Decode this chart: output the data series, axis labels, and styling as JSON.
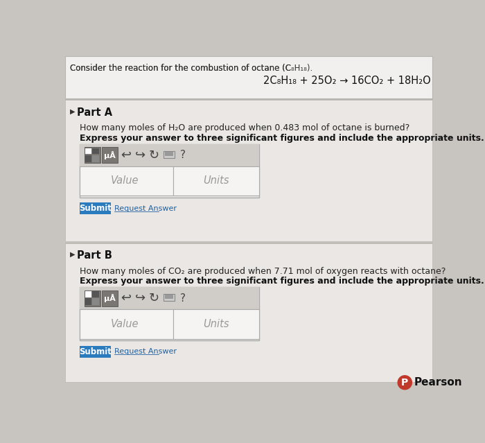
{
  "bg_outer": "#c8c4c0",
  "bg_header": "#f2f0ee",
  "bg_section": "#eae7e4",
  "bg_toolbar": "#d0ccc8",
  "bg_input": "#f5f4f2",
  "bg_white": "#ffffff",
  "border_color": "#b8b4b0",
  "header_text": "Consider the reaction for the combustion of octane (C₈H₁₈).",
  "equation": "2C₈H₁₈ + 25O₂ → 16CO₂ + 18H₂O",
  "part_a_label": "Part A",
  "part_a_q1": "How many moles of H₂O are produced when 0.483 mol of octane is burned?",
  "part_a_q2": "Express your answer to three significant figures and include the appropriate units.",
  "part_b_label": "Part B",
  "part_b_q1": "How many moles of CO₂ are produced when 7.71 mol of oxygen reacts with octane?",
  "part_b_q2": "Express your answer to three significant figures and include the appropriate units.",
  "value_placeholder": "Value",
  "units_placeholder": "Units",
  "submit_text": "Submit",
  "request_answer_text": "Request Answer",
  "submit_color": "#2b7bbf",
  "pearson_text": "Pearson",
  "pearson_circle_color": "#c0392b",
  "icon_dark": "#7a7672",
  "icon_darker": "#5a5652"
}
